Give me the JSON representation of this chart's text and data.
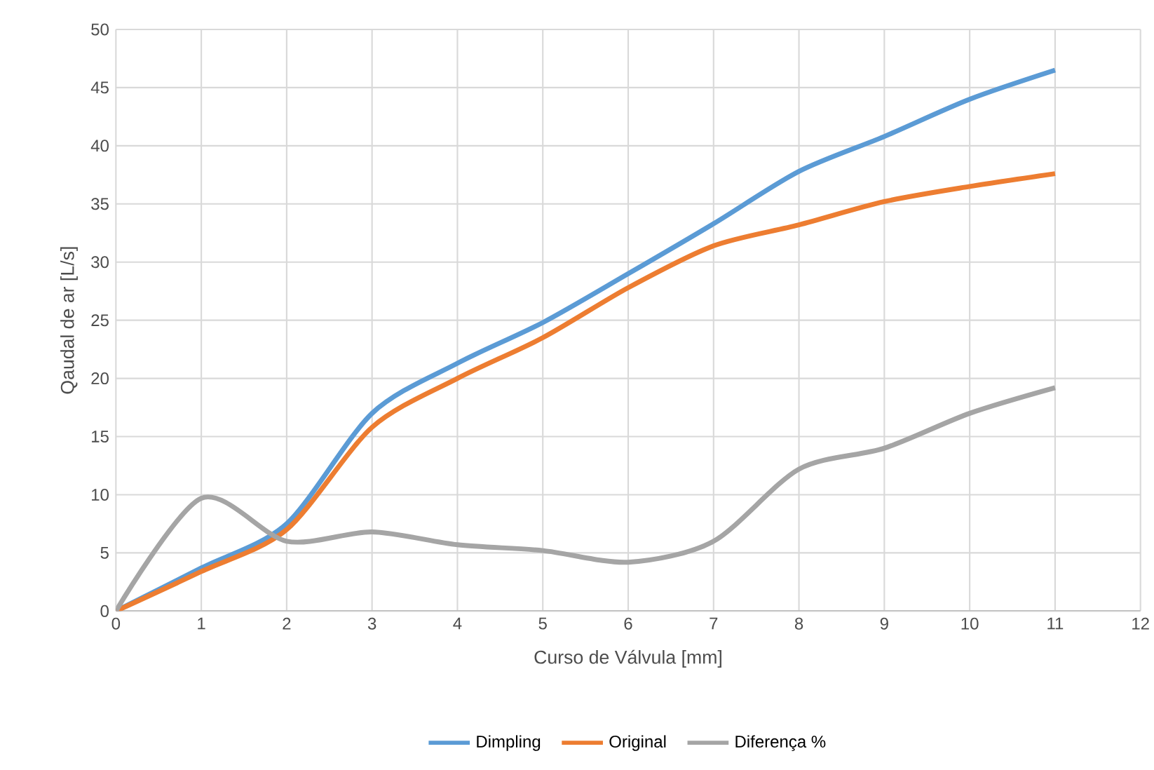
{
  "chart_data": {
    "type": "line",
    "xlabel": "Curso de Válvula [mm]",
    "ylabel": "Qaudal de ar [L/s]",
    "x": [
      0,
      1,
      2,
      3,
      4,
      5,
      6,
      7,
      8,
      9,
      10,
      11
    ],
    "series": [
      {
        "name": "Dimpling",
        "color": "#5b9bd5",
        "values": [
          0,
          3.7,
          7.5,
          17,
          21.3,
          24.8,
          29,
          33.3,
          37.8,
          40.8,
          44,
          46.5
        ]
      },
      {
        "name": "Original",
        "color": "#ed7d31",
        "values": [
          0,
          3.4,
          7,
          15.8,
          20,
          23.5,
          27.8,
          31.4,
          33.2,
          35.2,
          36.5,
          37.6
        ]
      },
      {
        "name": "Diferença %",
        "color": "#a5a5a5",
        "values": [
          0,
          9.7,
          6,
          6.8,
          5.7,
          5.2,
          4.2,
          6,
          12.2,
          14,
          17,
          19.2
        ]
      }
    ],
    "xlim": [
      0,
      12
    ],
    "xticks": [
      0,
      1,
      2,
      3,
      4,
      5,
      6,
      7,
      8,
      9,
      10,
      11,
      12
    ],
    "ylim": [
      0,
      50
    ],
    "yticks": [
      0,
      5,
      10,
      15,
      20,
      25,
      30,
      35,
      40,
      45,
      50
    ],
    "grid": true,
    "legend": "bottom",
    "line_style": "solid"
  }
}
